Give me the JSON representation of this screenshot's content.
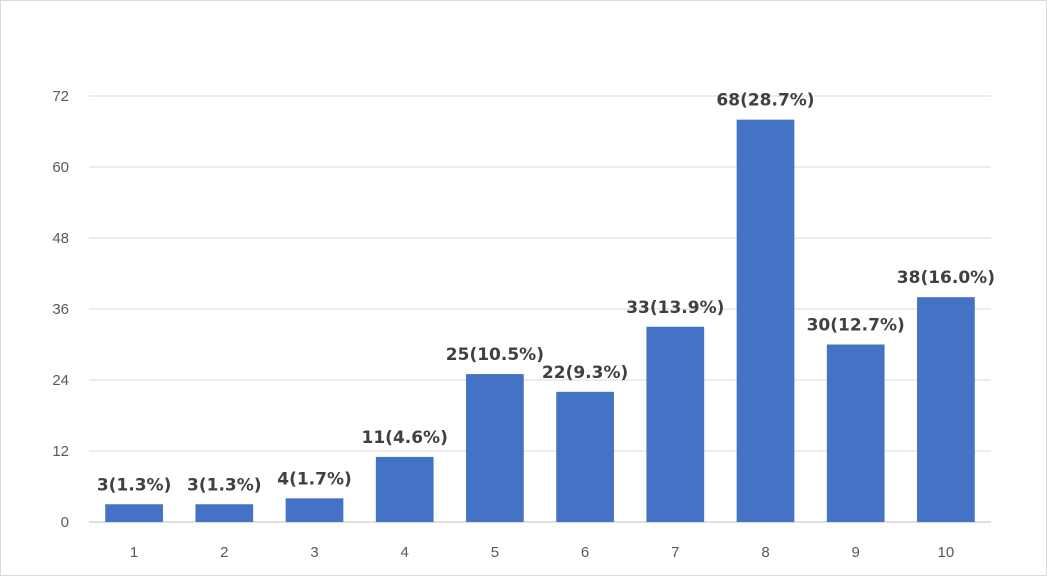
{
  "chart_data": {
    "type": "bar",
    "title": "",
    "ylabel": "",
    "xlabel": "",
    "categories": [
      "1",
      "2",
      "3",
      "4",
      "5",
      "6",
      "7",
      "8",
      "9",
      "10"
    ],
    "values": [
      3,
      3,
      4,
      11,
      25,
      22,
      33,
      68,
      30,
      38
    ],
    "data_labels": [
      "3(1.3%)",
      "3(1.3%)",
      "4(1.7%)",
      "11(4.6%)",
      "25(10.5%)",
      "22(9.3%)",
      "33(13.9%)",
      "68(28.7%)",
      "30(12.7%)",
      "38(16.0%)"
    ],
    "yticks": [
      0,
      12,
      24,
      36,
      48,
      60,
      72
    ],
    "ylim": [
      0,
      72
    ],
    "grid": true,
    "legend": "none",
    "bar_color": "#4472c4"
  }
}
